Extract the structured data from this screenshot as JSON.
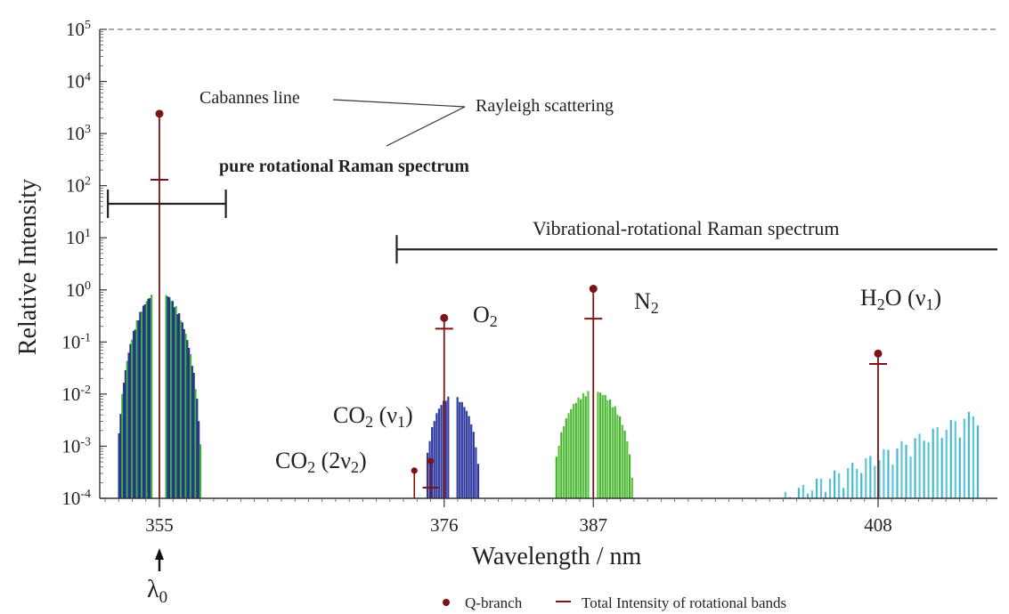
{
  "chart_data": {
    "type": "line",
    "title": "",
    "xlabel": "Wavelength / nm",
    "ylabel": "Relative Intensity",
    "yscale": "log",
    "ylim": [
      0.0001,
      100000
    ],
    "xlim": [
      350.6,
      416.8
    ],
    "grid": false,
    "x_ticks": [
      355,
      376,
      387,
      408
    ],
    "x_tick_labels": [
      "355",
      "376",
      "387",
      "408"
    ],
    "y_ticks": [
      {
        "base": "10",
        "exp": "-4",
        "value": 0.0001
      },
      {
        "base": "10",
        "exp": "-3",
        "value": 0.001
      },
      {
        "base": "10",
        "exp": "-2",
        "value": 0.01
      },
      {
        "base": "10",
        "exp": "-1",
        "value": 0.1
      },
      {
        "base": "10",
        "exp": "0",
        "value": 1
      },
      {
        "base": "10",
        "exp": "1",
        "value": 10
      },
      {
        "base": "10",
        "exp": "2",
        "value": 100
      },
      {
        "base": "10",
        "exp": "3",
        "value": 1000
      },
      {
        "base": "10",
        "exp": "4",
        "value": 10000
      },
      {
        "base": "10",
        "exp": "5",
        "value": 100000
      }
    ],
    "series": [
      {
        "name": "Q-branch",
        "marker": "circle",
        "color": "#7b1416",
        "points": [
          {
            "x": 355.0,
            "y": 2400
          },
          {
            "x": 376.0,
            "y": 0.29
          },
          {
            "x": 387.0,
            "y": 1.05
          },
          {
            "x": 408.0,
            "y": 0.06
          }
        ]
      },
      {
        "name": "Total Intensity of rotational bands",
        "marker": "dash",
        "color": "#7b1416",
        "points": [
          {
            "x": 355.0,
            "y": 130
          },
          {
            "x": 376.0,
            "y": 0.18
          },
          {
            "x": 387.0,
            "y": 0.28
          },
          {
            "x": 408.0,
            "y": 0.038
          }
        ]
      }
    ],
    "minor_lines": [
      {
        "x": 373.8,
        "circle": 0.00034,
        "dash": null
      },
      {
        "x": 375.0,
        "circle": 0.00052,
        "dash": 0.00016
      }
    ],
    "bands": [
      {
        "label": "pure rotational",
        "center": 355.0,
        "half_width": 3.1,
        "gap": 0.5,
        "peak": 0.95,
        "colors": [
          "#3fb53a",
          "#1f3e8c",
          "#2d2f88"
        ],
        "line_spacing": 0.12
      },
      {
        "label": "CO2 (v1)",
        "center": 376.6,
        "half_width": 2.0,
        "gap": 0.3,
        "peak": 0.0095,
        "colors": [
          "#3340a8",
          "#2b3798"
        ],
        "line_spacing": 0.17
      },
      {
        "label": "N2",
        "center": 387.0,
        "half_width": 2.9,
        "gap": 0.3,
        "peak": 0.012,
        "colors": [
          "#5fc23c",
          "#43b233"
        ],
        "line_spacing": 0.18
      },
      {
        "label": "H2O (v1)",
        "center": 408.0,
        "half_width": 7.5,
        "gap": 0,
        "peak": 0.0085,
        "colors": [
          "#5cc6db",
          "#45b8d2"
        ],
        "line_spacing": 0.33
      }
    ],
    "ranges": [
      {
        "label": "pure rotational Raman spectrum",
        "from": 351.2,
        "to": 359.9,
        "y": 45
      },
      {
        "label": "Vibrational-rotational Raman spectrum",
        "from": 372.5,
        "to": 416.8,
        "y": 6
      }
    ],
    "annotations": {
      "cabannes": "Cabannes line",
      "rayleigh": "Rayleigh scattering",
      "pure_rotational": "pure rotational Raman spectrum",
      "vib_rot": "Vibrational-rotational Raman spectrum",
      "o2": {
        "main": "O",
        "sub": "2"
      },
      "n2": {
        "main": "N",
        "sub": "2"
      },
      "h2o": {
        "pre": "H",
        "sub": "2",
        "post": "O (ν",
        "sub2": "1",
        "end": ")"
      },
      "co2_v1": {
        "pre": "CO",
        "sub": "2",
        "post": " (ν",
        "sub2": "1",
        "end": ")"
      },
      "co2_2v2": {
        "pre": "CO",
        "sub": "2",
        "post": " (2ν",
        "sub2": "2",
        "end": ")"
      },
      "lambda": {
        "main": "λ",
        "sub": "0"
      }
    },
    "legend": {
      "position": "bottom-right",
      "items": [
        {
          "label": "Q-branch",
          "marker": "circle"
        },
        {
          "label": "Total Intensity of rotational bands",
          "marker": "dash"
        }
      ]
    }
  }
}
